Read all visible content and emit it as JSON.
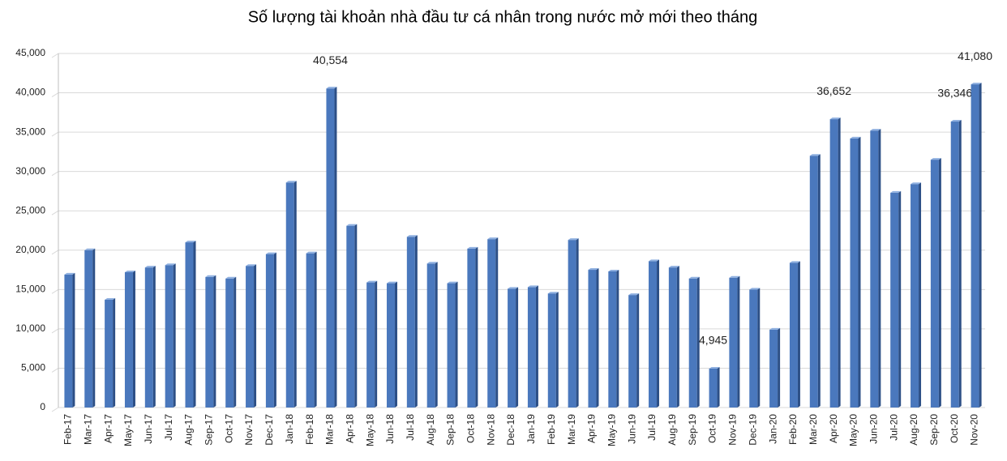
{
  "chart_data": {
    "type": "bar",
    "title": "Số lượng tài khoản nhà đầu tư cá nhân trong nước mở mới theo tháng",
    "categories": [
      "Feb-17",
      "Mar-17",
      "Apr-17",
      "May-17",
      "Jun-17",
      "Jul-17",
      "Aug-17",
      "Sep-17",
      "Oct-17",
      "Nov-17",
      "Dec-17",
      "Jan-18",
      "Feb-18",
      "Mar-18",
      "Apr-18",
      "May-18",
      "Jun-18",
      "Jul-18",
      "Aug-18",
      "Sep-18",
      "Oct-18",
      "Nov-18",
      "Dec-18",
      "Jan-19",
      "Feb-19",
      "Mar-19",
      "Apr-19",
      "May-19",
      "Jun-19",
      "Jul-19",
      "Aug-19",
      "Sep-19",
      "Oct-19",
      "Nov-19",
      "Dec-19",
      "Jan-20",
      "Feb-20",
      "Mar-20",
      "Apr-20",
      "May-20",
      "Jun-20",
      "Jul-20",
      "Aug-20",
      "Sep-20",
      "Oct-20",
      "Nov-20"
    ],
    "values": [
      16900,
      20000,
      13700,
      17200,
      17800,
      18100,
      21000,
      16600,
      16400,
      18000,
      19500,
      28600,
      19600,
      40554,
      23100,
      15900,
      15800,
      21700,
      18300,
      15800,
      20200,
      21400,
      15100,
      15300,
      14500,
      21300,
      17500,
      17300,
      14300,
      18600,
      17800,
      16400,
      4945,
      16500,
      15000,
      9900,
      18400,
      32000,
      36652,
      34200,
      35200,
      27300,
      28400,
      31500,
      36346,
      41080
    ],
    "value_labels": [
      null,
      null,
      null,
      null,
      null,
      null,
      null,
      null,
      null,
      null,
      null,
      null,
      null,
      "40,554",
      null,
      null,
      null,
      null,
      null,
      null,
      null,
      null,
      null,
      null,
      null,
      null,
      null,
      null,
      null,
      null,
      null,
      null,
      "4,945",
      null,
      null,
      null,
      null,
      null,
      "36,652",
      null,
      null,
      null,
      null,
      null,
      "36,346",
      "41,080"
    ],
    "color": "#4a78bd",
    "ylim": [
      0,
      45000
    ],
    "yticks": [
      0,
      {
        "value": 5000,
        "label": "5,000"
      },
      {
        "value": 10000,
        "label": "10,000"
      },
      {
        "value": 15000,
        "label": "15,000"
      },
      {
        "value": 20000,
        "label": "20,000"
      },
      {
        "value": 25000,
        "label": "25,000"
      },
      {
        "value": 30000,
        "label": "30,000"
      },
      {
        "value": 35000,
        "label": "35,000"
      },
      {
        "value": 40000,
        "label": "40,000"
      },
      {
        "value": 45000,
        "label": "45,000"
      }
    ],
    "grid": true
  }
}
